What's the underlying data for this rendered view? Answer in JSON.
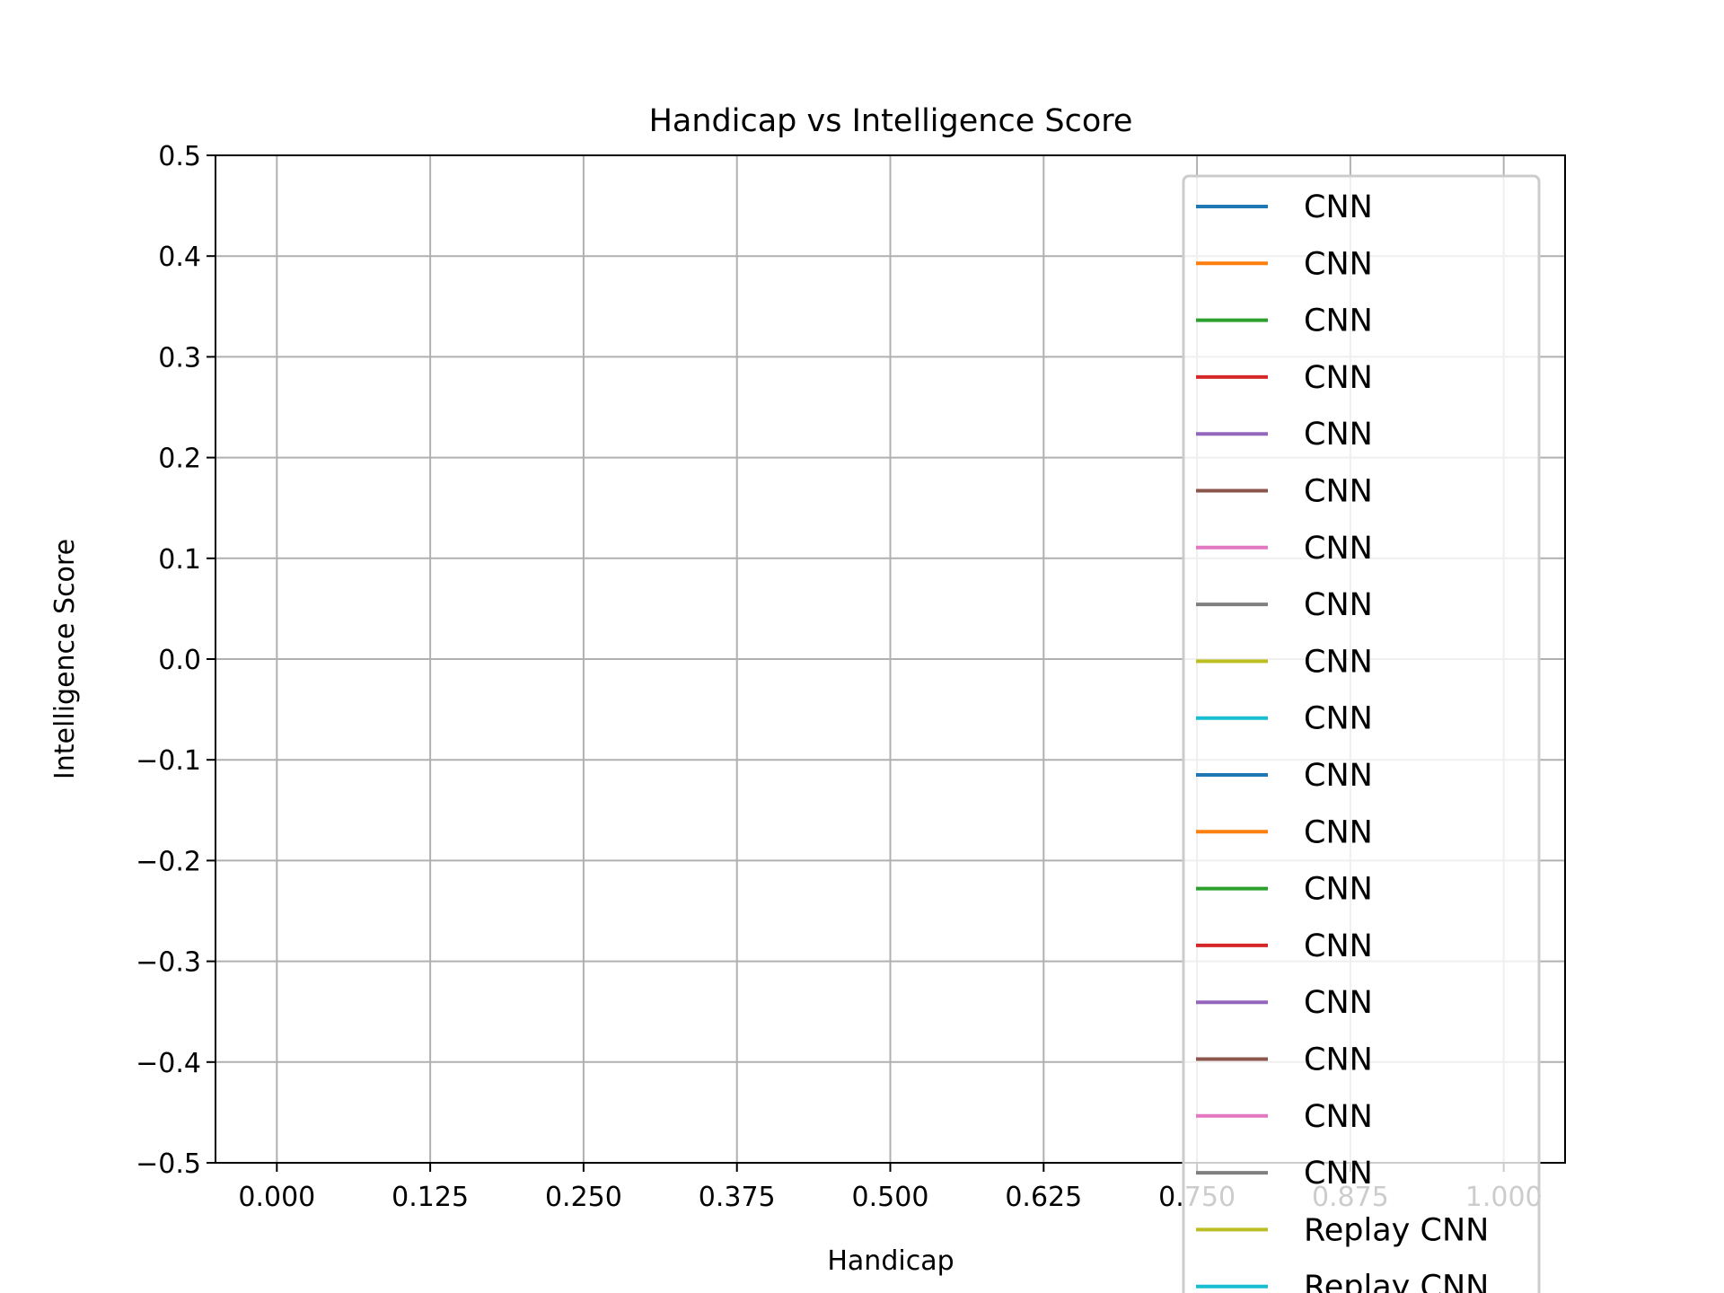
{
  "chart_data": {
    "type": "line",
    "title": "Handicap vs Intelligence Score",
    "xlabel": "Handicap",
    "ylabel": "Intelligence Score",
    "xlim": [
      -0.05,
      1.05
    ],
    "ylim": [
      -0.5,
      0.5
    ],
    "x_ticks": [
      0.0,
      0.125,
      0.25,
      0.375,
      0.5,
      0.625,
      0.75,
      0.875,
      1.0
    ],
    "x_tick_labels": [
      "0.000",
      "0.125",
      "0.250",
      "0.375",
      "0.500",
      "0.625",
      "0.750",
      "0.875",
      "1.000"
    ],
    "y_ticks": [
      0.5,
      0.4,
      0.3,
      0.2,
      0.1,
      0.0,
      -0.1,
      -0.2,
      -0.3,
      -0.4,
      -0.5
    ],
    "y_tick_labels": [
      "0.5",
      "0.4",
      "0.3",
      "0.2",
      "0.1",
      "0.0",
      "−0.1",
      "−0.2",
      "−0.3",
      "−0.4",
      "−0.5"
    ],
    "grid": true,
    "legend_position": "right",
    "series": [
      {
        "name": "CNN",
        "color": "#1f77b4",
        "x": [],
        "y": []
      },
      {
        "name": "CNN",
        "color": "#ff7f0e",
        "x": [],
        "y": []
      },
      {
        "name": "CNN",
        "color": "#2ca02c",
        "x": [],
        "y": []
      },
      {
        "name": "CNN",
        "color": "#d62728",
        "x": [],
        "y": []
      },
      {
        "name": "CNN",
        "color": "#9467bd",
        "x": [],
        "y": []
      },
      {
        "name": "CNN",
        "color": "#8c564b",
        "x": [],
        "y": []
      },
      {
        "name": "CNN",
        "color": "#e377c2",
        "x": [],
        "y": []
      },
      {
        "name": "CNN",
        "color": "#7f7f7f",
        "x": [],
        "y": []
      },
      {
        "name": "CNN",
        "color": "#bcbd22",
        "x": [],
        "y": []
      },
      {
        "name": "CNN",
        "color": "#17becf",
        "x": [],
        "y": []
      },
      {
        "name": "CNN",
        "color": "#1f77b4",
        "x": [],
        "y": []
      },
      {
        "name": "CNN",
        "color": "#ff7f0e",
        "x": [],
        "y": []
      },
      {
        "name": "CNN",
        "color": "#2ca02c",
        "x": [],
        "y": []
      },
      {
        "name": "CNN",
        "color": "#d62728",
        "x": [],
        "y": []
      },
      {
        "name": "CNN",
        "color": "#9467bd",
        "x": [],
        "y": []
      },
      {
        "name": "CNN",
        "color": "#8c564b",
        "x": [],
        "y": []
      },
      {
        "name": "CNN",
        "color": "#e377c2",
        "x": [],
        "y": []
      },
      {
        "name": "CNN",
        "color": "#7f7f7f",
        "x": [],
        "y": []
      },
      {
        "name": "Replay CNN",
        "color": "#bcbd22",
        "x": [],
        "y": []
      },
      {
        "name": "Replay CNN",
        "color": "#17becf",
        "x": [],
        "y": []
      }
    ]
  }
}
